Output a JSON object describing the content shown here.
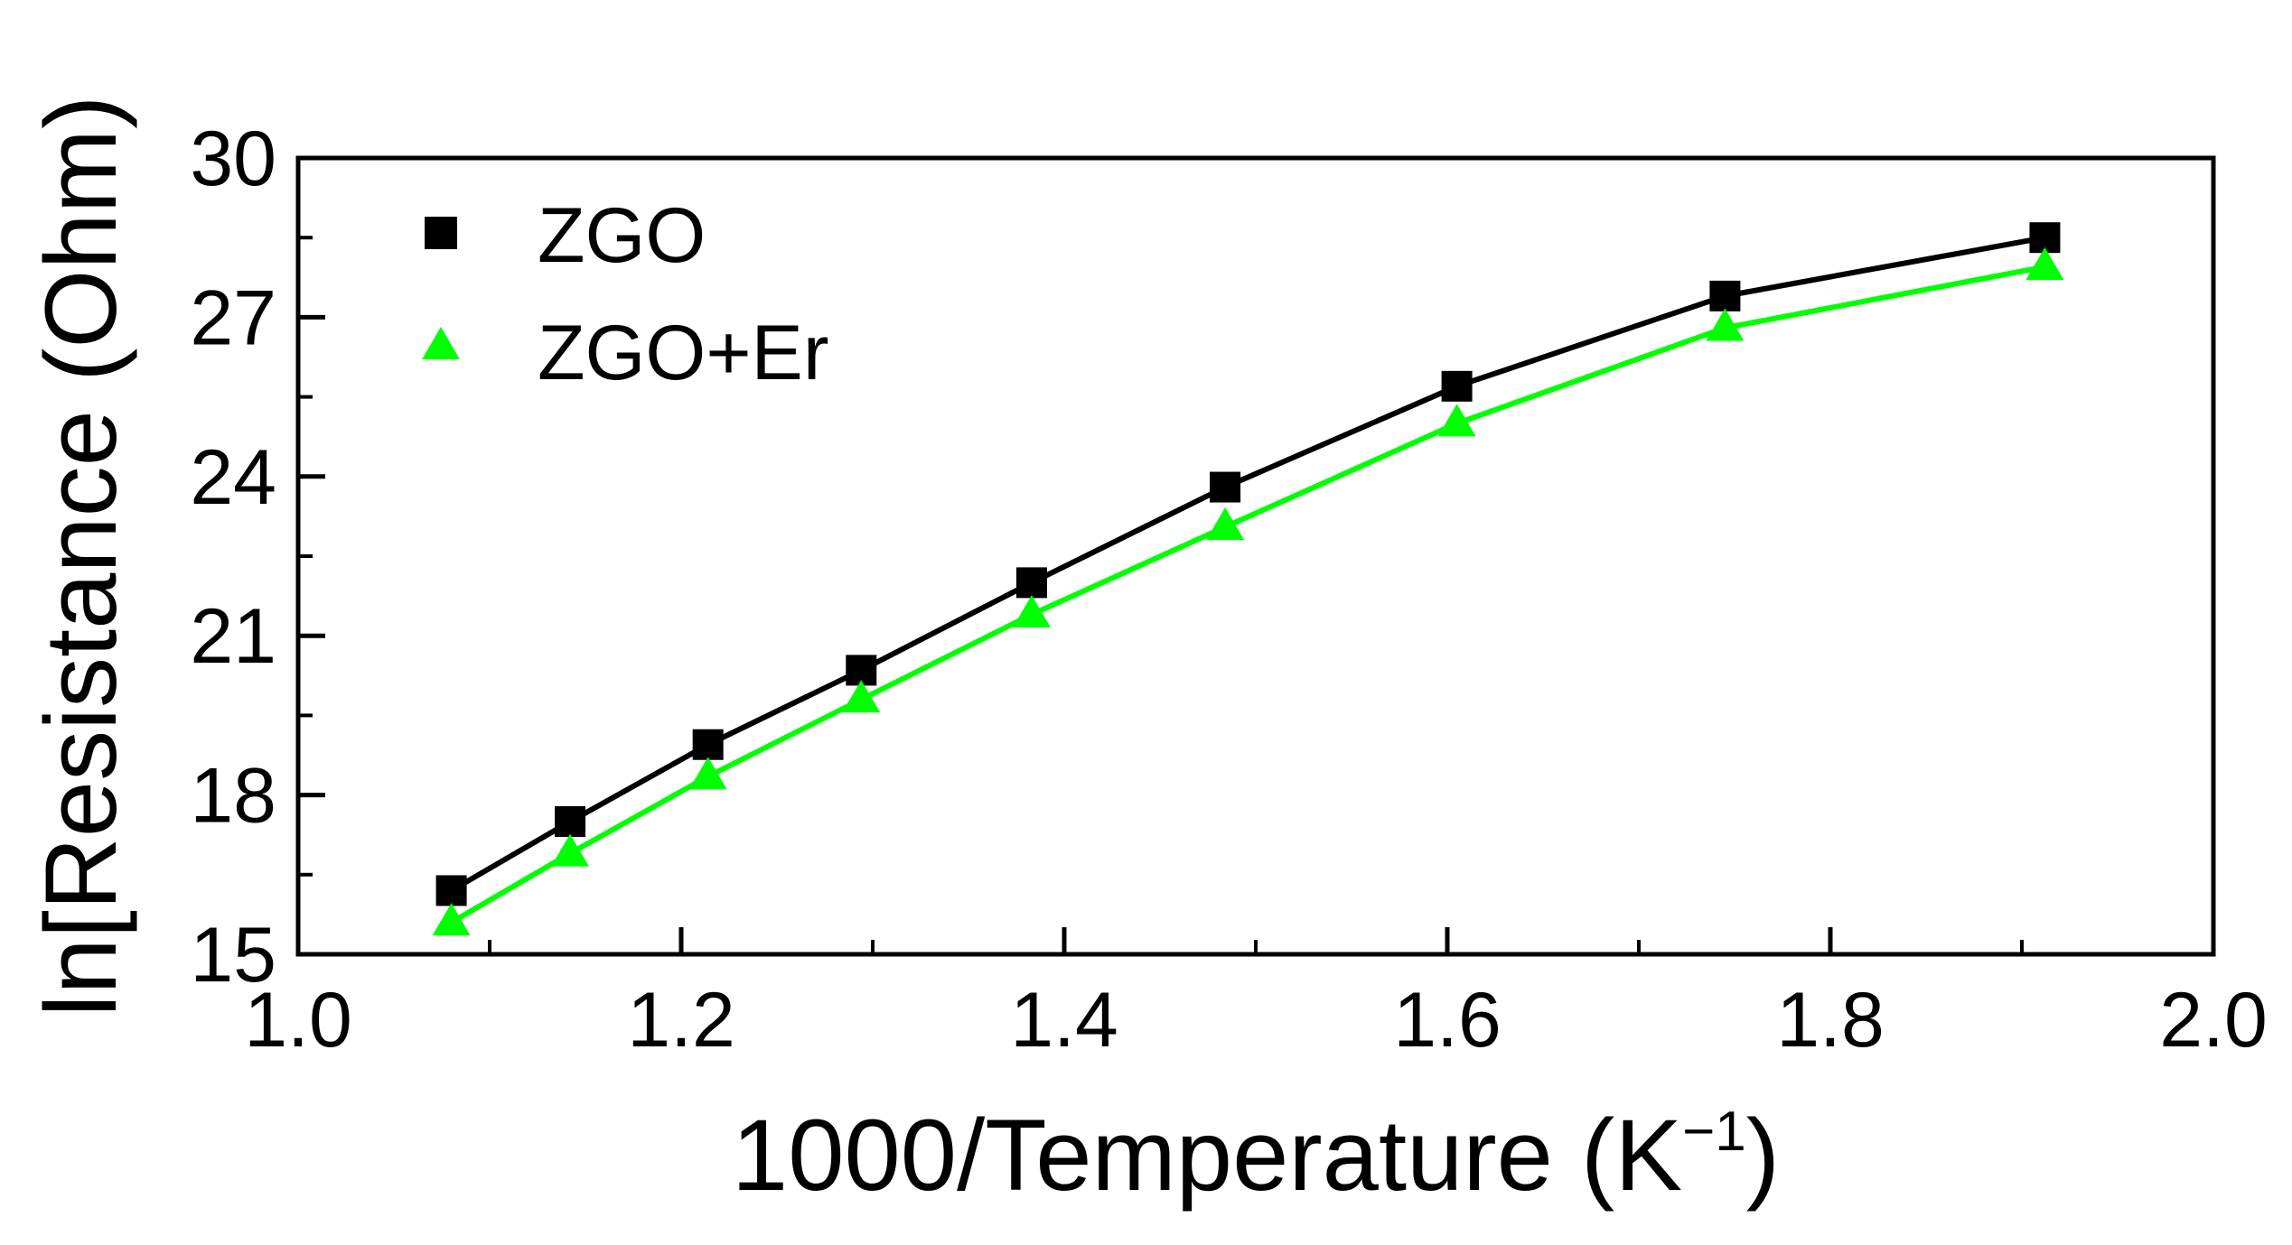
{
  "chart_data": {
    "type": "line",
    "xlabel": "1000/Temperature (K",
    "xlabel_sup": "−1",
    "xlabel_close": ")",
    "ylabel": "ln[Resistance (Ohm)",
    "xlim": [
      1.0,
      2.0
    ],
    "ylim": [
      15,
      30
    ],
    "xticks": [
      1.0,
      1.2,
      1.4,
      1.6,
      1.8,
      2.0
    ],
    "xtick_labels": [
      "1.0",
      "1.2",
      "1.4",
      "1.6",
      "1.8",
      "2.0"
    ],
    "xminor": [
      1.1,
      1.3,
      1.5,
      1.7,
      1.9
    ],
    "yticks": [
      15,
      18,
      21,
      24,
      27,
      30
    ],
    "ytick_labels": [
      "15",
      "18",
      "21",
      "24",
      "27",
      "30"
    ],
    "yminor": [
      16.5,
      19.5,
      22.5,
      25.5,
      28.5
    ],
    "grid": false,
    "legend_position": "top-left",
    "series": [
      {
        "name": "ZGO",
        "marker": "square",
        "color": "#000000",
        "x": [
          1.08,
          1.142,
          1.214,
          1.294,
          1.383,
          1.484,
          1.605,
          1.745,
          1.912
        ],
        "y": [
          16.2,
          17.5,
          18.95,
          20.35,
          22.0,
          23.8,
          25.7,
          27.4,
          28.5
        ]
      },
      {
        "name": "ZGO+Er",
        "marker": "triangle",
        "color": "#00ff00",
        "x": [
          1.08,
          1.142,
          1.214,
          1.294,
          1.383,
          1.484,
          1.605,
          1.745,
          1.912
        ],
        "y": [
          15.6,
          16.9,
          18.35,
          19.8,
          21.4,
          23.05,
          25.0,
          26.8,
          27.95
        ]
      }
    ]
  }
}
